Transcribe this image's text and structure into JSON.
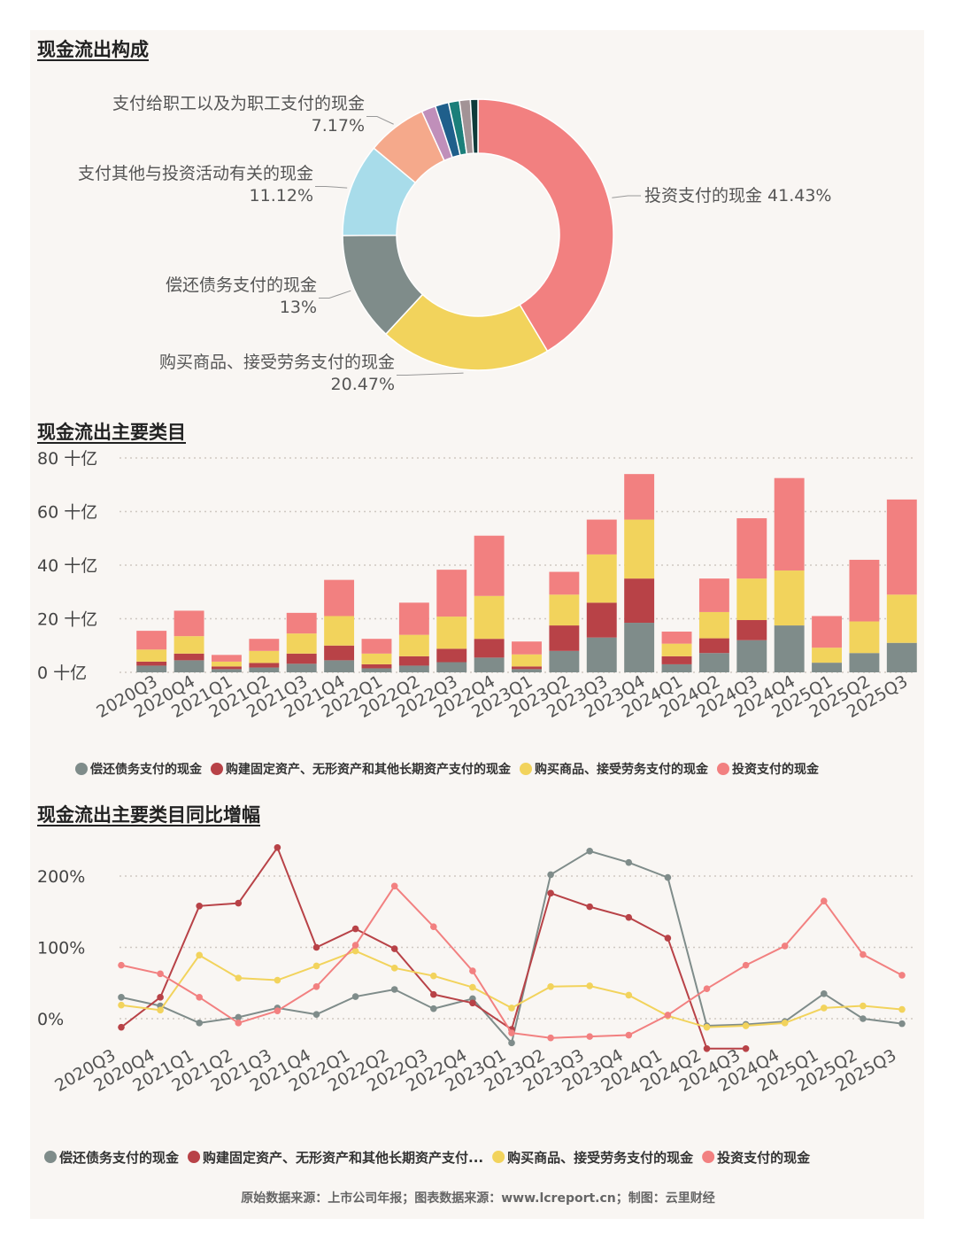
{
  "titles": {
    "donut": "现金流出构成",
    "bars": "现金流出主要类目",
    "lines": "现金流出主要类目同比增幅"
  },
  "footer": "原始数据来源：上市公司年报；图表数据来源：www.lcreport.cn；制图：云里财经",
  "colors": {
    "gray": "#7f8c8a",
    "red": "#b84247",
    "yellow": "#f2d35c",
    "pink": "#f28080",
    "lightblue": "#a8dcea",
    "peach": "#f5a98b",
    "lavender": "#c08fba",
    "darkblue": "#1f5f8b",
    "teal": "#1b7f7a",
    "mauve": "#a29396",
    "darkteal": "#0e3b3a",
    "dotline": "#cfc8c2"
  },
  "chart_data": [
    {
      "type": "pie",
      "variant": "donut",
      "title": "现金流出构成",
      "slices": [
        {
          "label": "投资支付的现金",
          "value": 41.43,
          "pct_text": "41.43%",
          "color": "#f28080",
          "show_label": true
        },
        {
          "label": "购买商品、接受劳务支付的现金",
          "value": 20.47,
          "pct_text": "20.47%",
          "color": "#f2d35c",
          "show_label": true
        },
        {
          "label": "偿还债务支付的现金",
          "value": 13.0,
          "pct_text": "13%",
          "color": "#7f8c8a",
          "show_label": true
        },
        {
          "label": "支付其他与投资活动有关的现金",
          "value": 11.12,
          "pct_text": "11.12%",
          "color": "#a8dcea",
          "show_label": true
        },
        {
          "label": "支付给职工以及为职工支付的现金",
          "value": 7.17,
          "pct_text": "7.17%",
          "color": "#f5a98b",
          "show_label": true
        },
        {
          "label": "",
          "value": 1.7,
          "pct_text": "",
          "color": "#c08fba",
          "show_label": false
        },
        {
          "label": "",
          "value": 1.6,
          "pct_text": "",
          "color": "#1f5f8b",
          "show_label": false
        },
        {
          "label": "",
          "value": 1.3,
          "pct_text": "",
          "color": "#1b7f7a",
          "show_label": false
        },
        {
          "label": "",
          "value": 1.3,
          "pct_text": "",
          "color": "#a29396",
          "show_label": false
        },
        {
          "label": "",
          "value": 0.9,
          "pct_text": "",
          "color": "#0e3b3a",
          "show_label": false
        }
      ]
    },
    {
      "type": "bar",
      "stacked": true,
      "title": "现金流出主要类目",
      "categories": [
        "2020Q3",
        "2020Q4",
        "2021Q1",
        "2021Q2",
        "2021Q3",
        "2021Q4",
        "2022Q1",
        "2022Q2",
        "2022Q3",
        "2022Q4",
        "2023Q1",
        "2023Q2",
        "2023Q3",
        "2023Q4",
        "2024Q1",
        "2024Q2",
        "2024Q3",
        "2024Q4",
        "2025Q1",
        "2025Q2",
        "2025Q3"
      ],
      "ylim": [
        0,
        80
      ],
      "yticks": [
        0,
        20,
        40,
        60,
        80
      ],
      "ytick_suffix": " 十亿",
      "series": [
        {
          "name": "偿还债务支付的现金",
          "color": "#7f8c8a",
          "values": [
            2.5,
            4.5,
            1.2,
            1.8,
            3.2,
            4.5,
            1.5,
            2.5,
            3.8,
            5.5,
            1.2,
            8.0,
            13.0,
            18.5,
            3.0,
            7.2,
            12.0,
            17.5,
            3.6,
            7.2,
            11.0
          ]
        },
        {
          "name": "购建固定资产、无形资产和其他长期资产支付的现金",
          "color": "#b84247",
          "values": [
            1.5,
            2.5,
            1.0,
            1.7,
            3.8,
            5.5,
            1.5,
            3.5,
            5.0,
            7.0,
            1.0,
            9.5,
            13.0,
            16.5,
            3.0,
            5.5,
            7.5,
            0,
            0,
            0,
            0
          ]
        },
        {
          "name": "购买商品、接受劳务支付的现金",
          "color": "#f2d35c",
          "values": [
            4.5,
            6.5,
            1.8,
            4.5,
            7.5,
            11.0,
            4.0,
            8.0,
            12.0,
            16.0,
            4.5,
            11.5,
            18.0,
            22.0,
            4.7,
            9.8,
            15.5,
            20.5,
            5.6,
            11.8,
            18.0
          ]
        },
        {
          "name": "投资支付的现金",
          "color": "#f28080",
          "values": [
            7.0,
            9.5,
            2.5,
            4.5,
            7.7,
            13.5,
            5.5,
            12.0,
            17.5,
            22.5,
            4.8,
            8.5,
            13.0,
            17.0,
            4.5,
            12.5,
            22.5,
            34.5,
            11.8,
            23.0,
            35.5
          ]
        }
      ]
    },
    {
      "type": "line",
      "title": "现金流出主要类目同比增幅",
      "categories": [
        "2020Q3",
        "2020Q4",
        "2021Q1",
        "2021Q2",
        "2021Q3",
        "2021Q4",
        "2022Q1",
        "2022Q2",
        "2022Q3",
        "2022Q4",
        "2023Q1",
        "2023Q2",
        "2023Q3",
        "2023Q4",
        "2024Q1",
        "2024Q2",
        "2024Q3",
        "2024Q4",
        "2025Q1",
        "2025Q2",
        "2025Q3"
      ],
      "ylim": [
        -60,
        250
      ],
      "yticks": [
        0,
        100,
        200
      ],
      "ytick_suffix": "%",
      "series": [
        {
          "name": "偿还债务支付的现金",
          "color": "#7f8c8a",
          "values": [
            30,
            18,
            -6,
            2,
            15,
            6,
            31,
            41,
            14,
            28,
            -34,
            202,
            235,
            219,
            198,
            -10,
            -8,
            -4,
            35,
            0,
            -7
          ]
        },
        {
          "name": "购建固定资产、无形资产和其他长期资产支付的现金",
          "color": "#b84247",
          "values": [
            -12,
            30,
            158,
            162,
            240,
            100,
            126,
            98,
            34,
            22,
            -15,
            176,
            157,
            142,
            113,
            -42,
            -42,
            null,
            null,
            null,
            null
          ]
        },
        {
          "name": "购买商品、接受劳务支付的现金",
          "color": "#f2d35c",
          "values": [
            19,
            12,
            89,
            57,
            54,
            74,
            95,
            71,
            60,
            44,
            15,
            45,
            46,
            33,
            4,
            -12,
            -10,
            -6,
            15,
            18,
            13
          ]
        },
        {
          "name": "投资支付的现金",
          "color": "#f28080",
          "values": [
            75,
            63,
            30,
            -6,
            11,
            45,
            103,
            186,
            129,
            67,
            -20,
            -27,
            -25,
            -23,
            5,
            42,
            75,
            102,
            165,
            90,
            61
          ]
        }
      ]
    }
  ],
  "legend2": [
    "偿还债务支付的现金",
    "购建固定资产、无形资产和其他长期资产支付的现金",
    "购买商品、接受劳务支付的现金",
    "投资支付的现金"
  ],
  "legend3": [
    "偿还债务支付的现金",
    "购建固定资产、无形资产和其他长期资产支付...",
    "购买商品、接受劳务支付的现金",
    "投资支付的现金"
  ]
}
